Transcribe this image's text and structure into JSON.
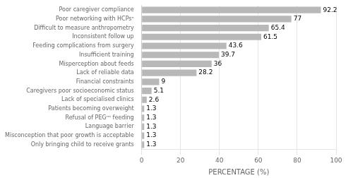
{
  "chart_data": {
    "type": "bar",
    "orientation": "horizontal",
    "categories": [
      "Only bringing child to receive grants",
      "Misconception that poor growth is acceptable",
      "Language barrier",
      "Refusal of PEGⁿⁿ feeding",
      "Patients becoming overweight",
      "Lack of specialised clinics",
      "Caregivers poor socioeconomic status",
      "Financial constraints",
      "Lack of reliable data",
      "Misperception about feeds",
      "Insufficient training",
      "Feeding complications from surgery",
      "Inconsistent follow up",
      "Difficult to measure anthropometry",
      "Poor networking with HCPsⁿ",
      "Poor caregiver compliance"
    ],
    "values": [
      1.3,
      1.3,
      1.3,
      1.3,
      1.3,
      2.6,
      5.1,
      9.0,
      28.2,
      36.0,
      39.7,
      43.6,
      61.5,
      65.4,
      77.0,
      92.2
    ],
    "color": "#b8b8b8",
    "xlabel": "PERCENTAGE (%)",
    "xlim": [
      0,
      100
    ],
    "xticks": [
      0,
      20,
      40,
      60,
      80,
      100
    ],
    "grid": true,
    "data_labels": true
  }
}
